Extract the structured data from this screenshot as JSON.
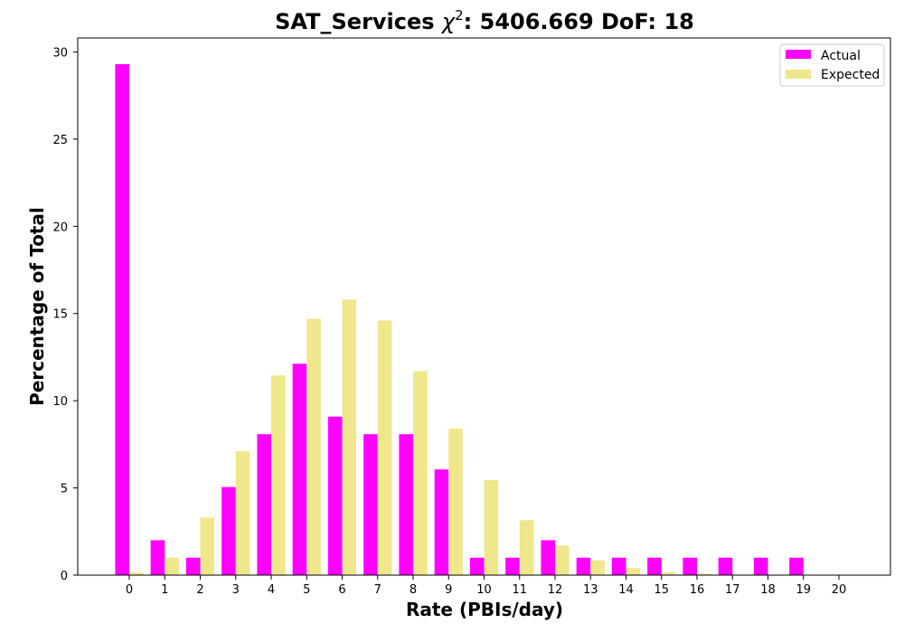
{
  "chart_data": {
    "type": "bar",
    "title_prefix": "SAT_Services ",
    "title_symbol": "χ",
    "title_superscript": "2",
    "title_suffix": ": 5406.669 DoF: 18",
    "xlabel": "Rate (PBIs/day)",
    "ylabel": "Percentage of Total",
    "categories": [
      "0",
      "1",
      "2",
      "3",
      "4",
      "5",
      "6",
      "7",
      "8",
      "9",
      "10",
      "11",
      "12",
      "13",
      "14",
      "15",
      "16",
      "17",
      "18",
      "19",
      "20"
    ],
    "ylim": [
      0,
      30.8
    ],
    "yticks": [
      0,
      5,
      10,
      15,
      20,
      25,
      30
    ],
    "grid": false,
    "legend_position": "top-right",
    "series": [
      {
        "name": "Actual",
        "color": "#ff00ff",
        "values": [
          29.3,
          2.0,
          1.0,
          5.05,
          8.08,
          12.12,
          9.09,
          8.08,
          8.08,
          6.06,
          1.0,
          1.0,
          2.0,
          1.0,
          1.0,
          1.0,
          1.0,
          1.0,
          1.0,
          1.0,
          0
        ]
      },
      {
        "name": "Expected",
        "color": "#f0e68c",
        "values": [
          0.15,
          1.0,
          3.3,
          7.1,
          11.45,
          14.7,
          15.8,
          14.6,
          11.7,
          8.4,
          5.45,
          3.15,
          1.7,
          0.85,
          0.4,
          0.15,
          0.08,
          0.03,
          0.01,
          0,
          0
        ]
      }
    ]
  }
}
